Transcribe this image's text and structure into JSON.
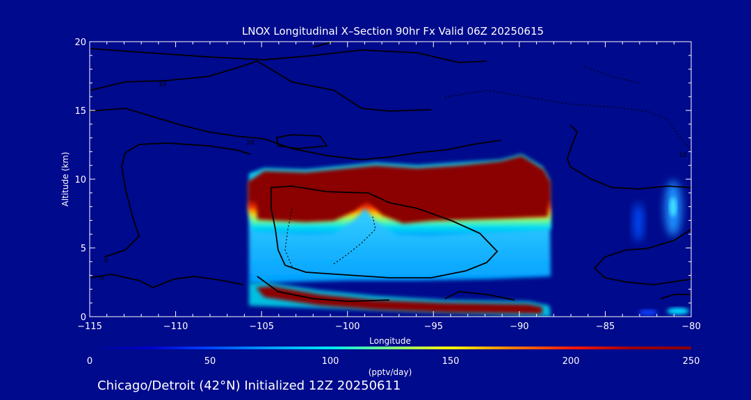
{
  "chart_data": {
    "type": "heatmap",
    "title": "LNOX Longitudinal X–Section 90hr  Fx Valid 06Z 20250615",
    "xlabel": "Longitude",
    "ylabel": "Altitude (km)",
    "xlim": [
      -115,
      -80
    ],
    "ylim": [
      0,
      20
    ],
    "xticks": [
      -115,
      -110,
      -105,
      -100,
      -95,
      -90,
      -85,
      -80
    ],
    "xtick_labels": [
      "−115",
      "−110",
      "−105",
      "−100",
      "−95",
      "−90",
      "−85",
      "−80"
    ],
    "yticks": [
      0,
      5,
      10,
      15,
      20
    ],
    "ytick_labels": [
      "0",
      "5",
      "10",
      "15",
      "20"
    ],
    "colorbar": {
      "label": "(pptv/day)",
      "range": [
        0,
        250
      ],
      "ticks": [
        0,
        50,
        100,
        150,
        200,
        250
      ],
      "tick_labels": [
        "0",
        "50",
        "100",
        "150",
        "200",
        "250"
      ],
      "colors": [
        "#000a8c",
        "#0000cd",
        "#0044ff",
        "#00a0ff",
        "#00e8f0",
        "#7fff80",
        "#ffff00",
        "#ff8000",
        "#ff1a00",
        "#a00000",
        "#8b0000"
      ]
    },
    "background_color": "#000a8c",
    "regions": [
      {
        "lon": [
          -105.7,
          -88.2
        ],
        "alt": [
          6.8,
          10.4
        ],
        "value": 250
      },
      {
        "lon": [
          -105.5,
          -88.2
        ],
        "alt": [
          3.0,
          6.8
        ],
        "value": 85
      },
      {
        "lon": [
          -105.5,
          -88.2
        ],
        "alt": [
          0.2,
          2.2
        ],
        "value": 250
      },
      {
        "lon": [
          -83.5,
          -82.5
        ],
        "alt": [
          5.5,
          9.0
        ],
        "value": 30
      },
      {
        "lon": [
          -81.5,
          -80
        ],
        "alt": [
          5.0,
          10.0
        ],
        "value": 45
      },
      {
        "lon": [
          -81.5,
          -80
        ],
        "alt": [
          0.2,
          0.8
        ],
        "value": 80
      }
    ],
    "contour_labels": [
      "10",
      "10",
      "0",
      "0",
      "10"
    ]
  },
  "caption": "Chicago/Detroit (42°N) Initialized 12Z 20250611"
}
